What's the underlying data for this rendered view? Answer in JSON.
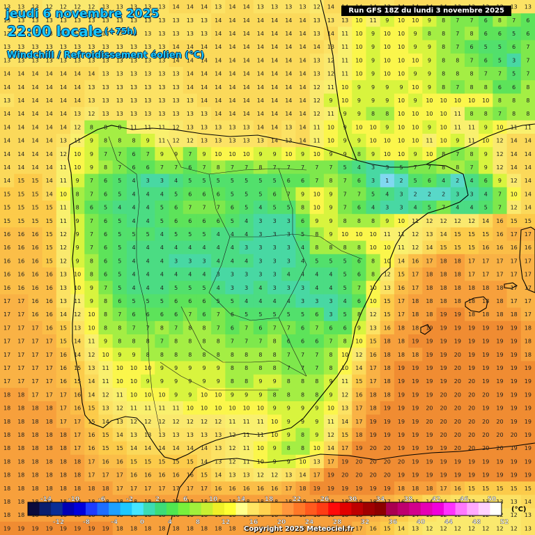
{
  "title": {
    "date": "jeudi 6 novembre 2025",
    "time": "22:00 locale",
    "lead": "(+75h)",
    "variable": "Windchill / Refroidissement éolien (°C)"
  },
  "run_info": "Run GFS 18Z du lundi 3 novembre 2025",
  "copyright": "Copyright 2025 Meteociel.fr",
  "legend": {
    "unit": "(°C)",
    "labels_top": [
      "-14",
      "-10",
      "-6",
      "-2",
      "2",
      "6",
      "10",
      "14",
      "18",
      "22",
      "26",
      "30",
      "34",
      "38",
      "42",
      "46",
      "50"
    ],
    "labels_bottom": [
      "-12",
      "-8",
      "-4",
      "0",
      "4",
      "8",
      "12",
      "16",
      "20",
      "24",
      "28",
      "32",
      "36",
      "40",
      "44",
      "48",
      "52"
    ],
    "colors": [
      "#0a0a3c",
      "#0a1e6e",
      "#0a2d96",
      "#0000b4",
      "#0000dc",
      "#1e3cff",
      "#1e6eff",
      "#1ea0ff",
      "#1ec8ff",
      "#46e6ff",
      "#3cdcb4",
      "#3cdc78",
      "#50e650",
      "#78f03c",
      "#a0f03c",
      "#c8f032",
      "#f0f028",
      "#ffff32",
      "#ffff8c",
      "#ffe664",
      "#ffd250",
      "#ffb43c",
      "#ff963c",
      "#ff7828",
      "#ff5a1e",
      "#ff3c14",
      "#ff0a0a",
      "#e10000",
      "#be0000",
      "#a00000",
      "#8c0000",
      "#aa0050",
      "#be006e",
      "#d2008c",
      "#e600b4",
      "#f000dc",
      "#ff32ff",
      "#ff78ff",
      "#ffaaff",
      "#ffd2ff",
      "#ffffff"
    ]
  },
  "palette": {
    "c19": "#f08c32",
    "c18": "#f7a03c",
    "c17": "#f9b245",
    "c16": "#fbbe48",
    "c15": "#fccb4a",
    "c14": "#fbd95a",
    "c13": "#fce264",
    "c12": "#fae96e",
    "c11": "#f9f06e",
    "c10": "#fbf64b",
    "c9": "#d8f43e",
    "c8": "#a4ee44",
    "c7": "#7ee84c",
    "c6": "#5de35a",
    "c5": "#52e06c",
    "c4": "#4bdc83",
    "c3": "#48d8a3",
    "c2": "#58d8c8",
    "c1": "#80d8f0",
    "ocean": "#f6b03e"
  },
  "grid_values": [
    "13 13 13 12 12 12 12 13 13 13 13 13 14 14 14 13 14 14 13 13 13 13 12 14 14 14 14 13 14 14 14 14 13 13 13 13 13 13",
    "13 13 13 13 13 13 13 13 13 13 13 13 13 13 13 14 14 14 14 14 14 14 13 13 13 10 11 9 10 10 9 8 7 7 6 8 7 6",
    "13 13 13 13 13 13 13 13 13 13 13 13 13 13 13 14 14 14 14 14 14 14 13 14 11 10 9 10 10 9 8 8 7 8 6 6 5 6",
    "13 13 13 13 13 13 13 13 13 13 13 13 14 14 14 14 14 14 14 14 14 14 14 13 11 10 9 10 10 9 9 8 7 6 5 5 6 7",
    "13 13 13 13 13 13 13 13 13 13 13 13 14 14 14 14 14 14 14 14 14 14 13 12 11 10 9 10 10 10 9 8 8 7 6 5 3 7",
    "14 14 14 14 14 14 14 13 13 13 13 13 13 14 14 14 14 14 14 14 14 14 13 12 11 10 9 10 10 9 9 8 8 8 7 7 5 7",
    "14 14 14 14 14 14 13 13 13 13 13 13 13 14 14 14 14 14 14 14 14 14 12 11 10 9 9 9 9 10 9 8 7 8 8 6 6 8",
    "13 14 14 14 14 14 13 13 13 13 13 13 13 13 14 14 14 14 14 14 14 14 12 9 10 9 9 9 10 9 10 10 10 10 10 8 8 8",
    "14 14 14 14 14 13 12 13 13 13 13 13 13 13 13 14 14 14 14 14 14 14 12 11 9 9 8 8 10 10 10 10 11 8 8 7 8 8",
    "14 14 14 14 14 12 8 8 8 11 11 11 12 13 13 13 13 13 14 14 13 14 11 10 9 10 10 9 10 10 9 10 11 11 9 10 11 11",
    "14 14 14 14 13 11 9 8 8 8 9 11 12 12 13 13 13 13 13 14 13 14 11 10 9 9 10 10 10 10 11 10 9 11 10 12 14 14",
    "14 14 14 14 12 10 9 7 7 6 7 9 9 7 9 10 10 10 9 9 10 9 10 9 9 8 9 10 10 9 10 8 7 8 9 12 14 14",
    "14 14 14 14 11 10 9 8 7 6 6 7 7 6 7 8 7 7 8 7 7 7 7 7 5 4 3 3 5 7 7 8 8 7 9 12 14 14",
    "14 15 15 14 11 9 7 6 5 4 3 3 4 5 5 5 5 5 5 5 6 6 7 8 7 6 3 1 2 5 6 4 2 4 6 9 12 14",
    "15 15 15 14 10 8 7 6 5 4 4 4 5 6 6 6 5 5 5 6 7 9 10 9 7 7 5 4 3 2 2 2 3 3 4 7 10 14",
    "15 15 15 15 11 8 6 5 4 4 4 5 6 7 7 7 6 5 4 5 5 8 10 9 7 6 4 3 3 4 5 7 4 4 5 7 12 14",
    "15 15 15 15 11 9 7 6 5 4 4 5 6 6 6 6 5 4 3 3 3 6 9 9 8 8 8 9 10 11 12 12 12 12 14 16 15 15",
    "16 16 16 15 12 9 7 6 5 5 5 4 5 5 5 4 4 4 3 3 3 5 8 9 10 10 10 11 11 12 13 14 15 15 15 16 17 17",
    "16 16 16 15 12 9 7 6 5 4 4 4 4 4 4 4 4 3 3 3 3 4 8 8 8 8 10 10 11 12 14 15 15 15 16 16 16 16",
    "16 16 16 15 12 9 8 6 5 4 4 4 3 3 3 4 4 4 3 3 3 4 5 5 5 6 8 10 14 16 17 18 18 17 17 17 17 17",
    "16 16 16 16 13 10 8 6 5 4 4 4 4 4 4 3 3 3 3 3 4 4 4 4 5 6 8 12 15 17 18 18 18 17 17 17 17 17",
    "16 16 16 16 13 10 9 7 5 4 4 4 5 5 5 4 3 3 4 3 3 3 4 4 5 7 10 13 16 17 18 18 18 18 18 18 17 17",
    "17 17 16 16 13 11 9 8 6 5 5 5 6 6 6 5 5 4 4 4 4 3 3 3 4 6 10 15 17 18 18 18 18 18 18 18 17 17",
    "17 17 16 16 14 12 10 8 7 6 6 6 6 7 6 7 6 5 5 5 5 5 6 3 5 8 12 15 17 18 18 19 19 18 18 18 18 17",
    "17 17 17 16 15 13 10 8 8 7 7 8 7 8 8 7 6 7 6 7 7 6 7 6 6 9 13 16 18 18 19 19 19 19 19 19 19 18",
    "17 17 17 17 15 14 11 9 8 8 8 7 8 8 8 8 7 7 7 8 6 6 6 7 8 10 15 18 18 19 19 19 19 19 19 19 19 18",
    "17 17 17 17 16 14 12 10 9 9 8 8 8 8 8 8 8 8 8 8 7 7 7 8 10 12 16 18 18 18 19 19 20 19 19 19 19 18",
    "17 17 17 17 16 15 13 11 10 10 10 9 9 9 9 9 8 8 8 8 7 7 7 8 10 14 17 18 19 19 19 19 20 19 19 19 19 19",
    "17 17 17 17 16 15 14 11 10 10 9 9 9 9 9 9 8 8 9 9 8 8 8 9 11 15 17 18 19 19 19 19 20 20 19 19 19 19",
    "18 18 17 17 17 16 14 12 11 10 10 10 9 9 10 10 9 9 9 8 8 8 8 9 12 16 18 18 19 19 19 20 20 20 20 19 19 19",
    "18 18 18 18 17 16 15 13 12 11 11 11 11 10 10 10 10 10 10 9 9 9 9 10 13 17 18 19 19 19 20 20 20 20 19 19 19 19",
    "18 18 18 18 17 17 15 14 13 12 12 12 12 12 12 12 11 11 11 10 9 9 9 11 14 17 19 19 19 19 20 20 20 20 20 20 19 19",
    "18 18 18 18 18 17 16 15 14 13 13 13 13 13 13 13 12 11 11 10 9 8 9 12 15 18 19 19 19 19 19 20 20 20 20 20 20 19",
    "18 18 18 18 18 17 16 15 15 14 14 14 14 14 14 13 12 11 10 9 8 8 10 14 17 19 20 20 19 19 19 19 20 20 20 20 19 19",
    "18 18 18 18 18 18 17 16 16 15 15 15 15 15 14 13 12 11 10 9 9 10 13 17 19 20 20 20 20 19 19 19 19 19 19 19 19 19",
    "18 18 18 18 18 18 17 17 17 16 16 16 16 16 15 14 13 13 12 12 13 14 17 19 20 20 20 20 19 19 19 19 19 19 19 19 19 19",
    "18 18 18 18 18 18 18 18 17 17 17 17 17 17 17 16 16 16 16 16 17 18 19 19 19 19 19 19 18 18 18 17 16 15 15 15 15 15",
    "18 18 18 18 18 18 18 18 18 18 18 18 18 18 18 18 18 18 18 18 18 18 18 18 18 18 18 17 16 15 14 14 13 13 13 13 13 14",
    "18 18 18 18 18 18 18 18 18 18 18 18 18 18 18 18 18 18 18 18 18 18 18 18 18 18 17 16 15 14 13 12 12 12 12 12 12 13",
    "19 19 19 19 19 19 19 19 18 18 18 18 18 18 18 18 18 18 18 18 18 18 18 18 18 17 16 15 14 13 12 12 12 12 12 12 12 13"
  ]
}
